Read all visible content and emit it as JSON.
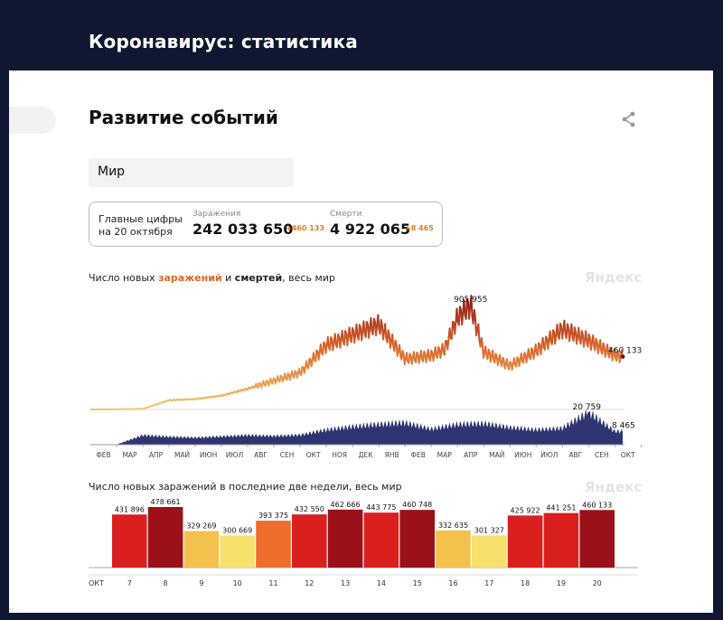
{
  "header": {
    "title": "Коронавирус: статистика"
  },
  "section": {
    "title": "Развитие событий"
  },
  "region": {
    "value": "Мир"
  },
  "stats": {
    "label_line1": "Главные цифры",
    "label_line2": "на 20 октября",
    "cases_label": "Заражения",
    "cases_value": "242 033 650",
    "cases_delta": "+460 133",
    "deaths_label": "Смерти",
    "deaths_value": "4 922 065",
    "deaths_delta": "+8 465"
  },
  "watermark": "Яндекс",
  "colors": {
    "header_bg": "#0f1830",
    "cases_accent": "#d9662a",
    "deaths_area": "#2d3572"
  },
  "chart_data": [
    {
      "type": "area",
      "title_parts": [
        "Число новых ",
        "заражений",
        " и ",
        "смертей",
        ", весь мир"
      ],
      "x_tick_labels": [
        "ФЕВ",
        "МАР",
        "АПР",
        "МАЙ",
        "ИЮН",
        "ИЮЛ",
        "АВГ",
        "СЕН",
        "ОКТ",
        "НОЯ",
        "ДЕК",
        "ЯНВ",
        "ФЕВ",
        "МАР",
        "АПР",
        "МАЙ",
        "ИЮН",
        "ИЮЛ",
        "АВГ",
        "СЕН",
        "ОКТ"
      ],
      "series": [
        {
          "name": "заражений",
          "x": [
            0,
            1,
            2,
            3,
            4,
            5,
            6,
            7,
            8,
            9,
            10,
            11,
            12,
            13,
            13.5,
            14,
            14.5,
            15,
            16,
            17,
            18,
            19,
            20,
            20.3
          ],
          "values": [
            0,
            500,
            5000,
            80000,
            90000,
            120000,
            180000,
            250000,
            320000,
            560000,
            650000,
            740000,
            440000,
            470000,
            520000,
            800000,
            905955,
            500000,
            380000,
            510000,
            700000,
            600000,
            470000,
            460133
          ],
          "annotations": [
            {
              "label": "905 955",
              "x": 14.5
            },
            {
              "label": "460 133",
              "x": 20.3
            }
          ]
        },
        {
          "name": "смертей",
          "x": [
            0,
            1,
            2,
            3,
            4,
            5,
            6,
            7,
            8,
            9,
            10,
            11,
            12,
            13,
            14,
            15,
            16,
            17,
            18,
            19,
            20,
            20.3
          ],
          "values": [
            0,
            100,
            6000,
            5000,
            4500,
            5200,
            6000,
            5500,
            6200,
            9500,
            11500,
            13000,
            14000,
            10000,
            13000,
            13500,
            11000,
            9500,
            10500,
            20759,
            8500,
            8465
          ],
          "annotations": [
            {
              "label": "20 759",
              "x": 19
            },
            {
              "label": "8 465",
              "x": 20.3
            }
          ]
        }
      ]
    },
    {
      "type": "bar",
      "title": "Число новых заражений в последние две недели, весь мир",
      "month_label": "ОКТ",
      "categories": [
        "7",
        "8",
        "9",
        "10",
        "11",
        "12",
        "13",
        "14",
        "15",
        "16",
        "17",
        "18",
        "19",
        "20"
      ],
      "values": [
        431896,
        478661,
        329269,
        300669,
        393375,
        432550,
        462666,
        443775,
        460748,
        332635,
        301327,
        425922,
        441251,
        460133
      ],
      "value_labels": [
        "431 896",
        "478 661",
        "329 269",
        "300 669",
        "393 375",
        "432 550",
        "462 666",
        "443 775",
        "460 748",
        "332 635",
        "301 327",
        "425 922",
        "441 251",
        "460 133"
      ]
    }
  ]
}
